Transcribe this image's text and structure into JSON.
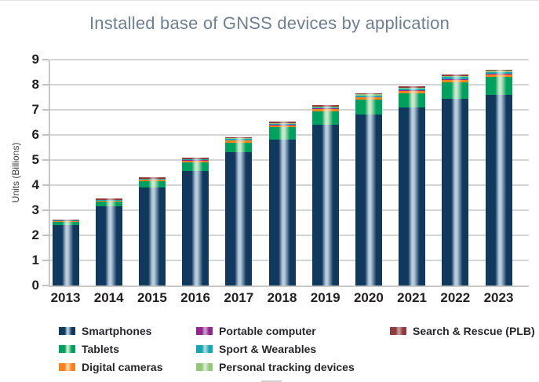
{
  "chart_data": {
    "type": "bar",
    "stacked": true,
    "title": "Installed base of GNSS devices by application",
    "xlabel": "",
    "ylabel": "Units (Billions)",
    "ylim": [
      0,
      9
    ],
    "yticks": [
      0,
      1,
      2,
      3,
      4,
      5,
      6,
      7,
      8,
      9
    ],
    "grid": true,
    "legend_position": "bottom",
    "categories": [
      "2013",
      "2014",
      "2015",
      "2016",
      "2017",
      "2018",
      "2019",
      "2020",
      "2021",
      "2022",
      "2023"
    ],
    "series": [
      {
        "name": "Smartphones",
        "color": "#11395e",
        "highlight": "#b6cbdc",
        "values": [
          2.4,
          3.15,
          3.9,
          4.55,
          5.3,
          5.8,
          6.4,
          6.8,
          7.1,
          7.45,
          7.6
        ]
      },
      {
        "name": "Tablets",
        "color": "#00a15e",
        "highlight": "#c9e8cb",
        "values": [
          0.12,
          0.18,
          0.25,
          0.35,
          0.4,
          0.5,
          0.55,
          0.6,
          0.55,
          0.65,
          0.7
        ]
      },
      {
        "name": "Digital cameras",
        "color": "#f5821f",
        "highlight": "#fbd3a4",
        "values": [
          0.04,
          0.05,
          0.06,
          0.07,
          0.07,
          0.08,
          0.08,
          0.09,
          0.09,
          0.1,
          0.1
        ]
      },
      {
        "name": "Portable computer",
        "color": "#92278f",
        "highlight": "#c79bc4",
        "values": [
          0.01,
          0.01,
          0.01,
          0.02,
          0.02,
          0.02,
          0.02,
          0.02,
          0.03,
          0.03,
          0.03
        ]
      },
      {
        "name": "Sport & Wearables",
        "color": "#1aa5b3",
        "highlight": "#a6d9dd",
        "values": [
          0.01,
          0.02,
          0.02,
          0.03,
          0.04,
          0.05,
          0.05,
          0.06,
          0.07,
          0.07,
          0.08
        ]
      },
      {
        "name": "Personal tracking devices",
        "color": "#93c87b",
        "highlight": "#d6ebd1",
        "values": [
          0.01,
          0.01,
          0.02,
          0.02,
          0.03,
          0.03,
          0.04,
          0.04,
          0.04,
          0.05,
          0.05
        ]
      },
      {
        "name": "Search & Rescue (PLB)",
        "color": "#903a3d",
        "highlight": "#c09a98",
        "values": [
          0.01,
          0.01,
          0.01,
          0.01,
          0.01,
          0.01,
          0.01,
          0.01,
          0.02,
          0.02,
          0.02
        ]
      }
    ],
    "legend_columns": [
      [
        "Smartphones",
        "Tablets",
        "Digital cameras"
      ],
      [
        "Portable computer",
        "Sport & Wearables",
        "Personal tracking devices"
      ],
      [
        "Search & Rescue (PLB)"
      ]
    ]
  },
  "colors": {
    "title_text": "#6e7f8f",
    "axis_text": "#231f20",
    "gridline": "#d4d5d2"
  }
}
